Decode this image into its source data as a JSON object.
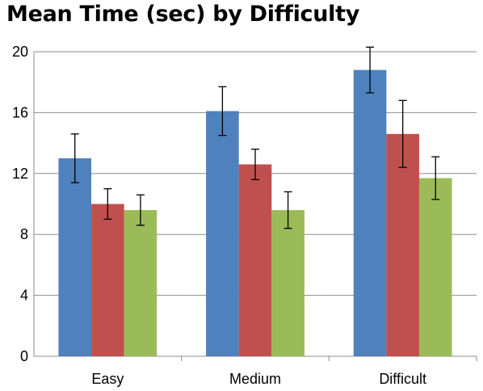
{
  "chart_data": {
    "type": "bar",
    "title": "Mean Time (sec) by Difficulty",
    "xlabel": "",
    "ylabel": "",
    "categories": [
      "Easy",
      "Medium",
      "Difficult"
    ],
    "ylim": [
      0,
      20
    ],
    "yticks": [
      0,
      4,
      8,
      12,
      16,
      20
    ],
    "grid": true,
    "legend": "none",
    "series": [
      {
        "color": "#4F81BD",
        "values": [
          13.0,
          16.1,
          18.8
        ],
        "errors": [
          1.6,
          1.6,
          1.5
        ]
      },
      {
        "color": "#C0504D",
        "values": [
          10.0,
          12.6,
          14.6
        ],
        "errors": [
          1.0,
          1.0,
          2.2
        ]
      },
      {
        "color": "#9BBB59",
        "values": [
          9.6,
          9.6,
          11.7
        ],
        "errors": [
          1.0,
          1.2,
          1.4
        ]
      }
    ]
  }
}
